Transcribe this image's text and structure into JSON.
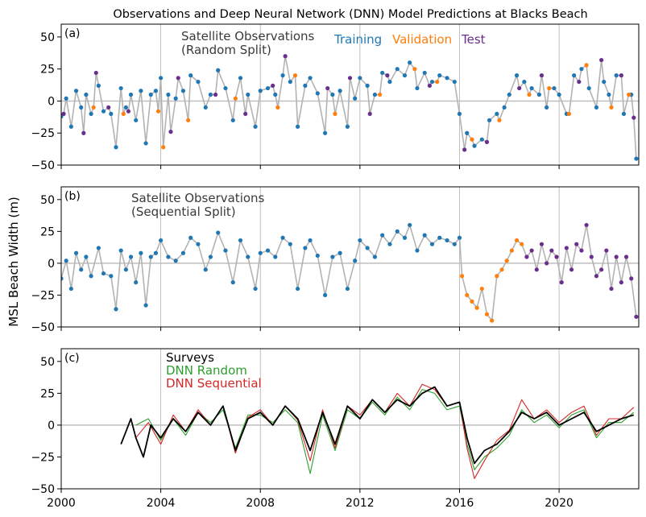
{
  "chart_data": {
    "type": "scatter",
    "title": "Observations and Deep Neural Network (DNN) Model Predictions at Blacks Beach",
    "ylabel": "MSL Beach Width (m)",
    "xlim": [
      2000,
      2023.2
    ],
    "ylim": [
      -50,
      60
    ],
    "x_ticks": [
      2000,
      2004,
      2008,
      2012,
      2016,
      2020
    ],
    "y_ticks": [
      -50,
      -25,
      0,
      25,
      50
    ],
    "grid": "vertical at x ticks, horizontal reference line at 0",
    "colors": {
      "observations_line": "#b3b3b3",
      "training": "#1f77b4",
      "validation": "#ff7f0e",
      "test": "#6a2f8e",
      "surveys": "#000000",
      "dnn_random": "#2ca02c",
      "dnn_sequential": "#d62728",
      "zero_line": "#bfbfbf"
    },
    "panels": [
      {
        "id": "a",
        "label": "(a)",
        "annotation": [
          "Satellite Observations",
          "(Random Split)"
        ],
        "legend": [
          "Training",
          "Validation",
          "Test"
        ],
        "series": [
          {
            "name": "Training",
            "x": [
              2000.0,
              2000.2,
              2000.4,
              2000.6,
              2000.8,
              2001.0,
              2001.2,
              2001.5,
              2001.7,
              2002.0,
              2002.2,
              2002.4,
              2002.6,
              2002.8,
              2003.0,
              2003.2,
              2003.4,
              2003.6,
              2003.8,
              2004.0,
              2004.3,
              2004.6,
              2004.9,
              2005.2,
              2005.5,
              2005.8,
              2006.0,
              2006.3,
              2006.6,
              2006.9,
              2007.2,
              2007.5,
              2007.8,
              2008.0,
              2008.3,
              2008.6,
              2008.9,
              2009.2,
              2009.5,
              2009.8,
              2010.0,
              2010.3,
              2010.6,
              2010.9,
              2011.2,
              2011.5,
              2011.8,
              2012.0,
              2012.3,
              2012.6,
              2012.9,
              2013.2,
              2013.5,
              2013.8,
              2014.0,
              2014.3,
              2014.6,
              2014.9,
              2015.2,
              2015.5,
              2015.8,
              2016.0,
              2016.3,
              2016.6,
              2016.9,
              2017.2,
              2017.5,
              2017.8,
              2018.0,
              2018.3,
              2018.6,
              2018.9,
              2019.2,
              2019.5,
              2019.8,
              2020.0,
              2020.3,
              2020.6,
              2020.9,
              2021.2,
              2021.5,
              2021.8,
              2022.0,
              2022.3,
              2022.6,
              2022.9,
              2023.1
            ],
            "y": [
              -12,
              2,
              -20,
              8,
              -5,
              5,
              -10,
              12,
              -8,
              -10,
              -36,
              10,
              -5,
              5,
              -15,
              8,
              -33,
              5,
              8,
              18,
              5,
              2,
              8,
              20,
              15,
              -5,
              5,
              24,
              10,
              -15,
              18,
              5,
              -20,
              8,
              10,
              5,
              20,
              15,
              -20,
              12,
              18,
              6,
              -25,
              5,
              8,
              -20,
              2,
              18,
              12,
              5,
              22,
              15,
              25,
              20,
              30,
              10,
              22,
              15,
              20,
              18,
              15,
              -10,
              -25,
              -35,
              -30,
              -15,
              -10,
              -5,
              5,
              20,
              15,
              10,
              5,
              -5,
              10,
              5,
              -10,
              20,
              25,
              10,
              -5,
              15,
              5,
              20,
              -10,
              5,
              -45
            ]
          },
          {
            "name": "Validation",
            "x": [
              2001.3,
              2002.5,
              2003.9,
              2004.1,
              2005.1,
              2007.0,
              2008.7,
              2009.4,
              2011.0,
              2012.8,
              2014.2,
              2015.1,
              2016.5,
              2017.6,
              2018.8,
              2019.6,
              2020.4,
              2021.1,
              2022.1,
              2022.8
            ],
            "y": [
              -5,
              -10,
              -8,
              -36,
              -15,
              2,
              -5,
              20,
              -10,
              5,
              25,
              15,
              -30,
              -15,
              5,
              10,
              -10,
              28,
              -5,
              5
            ]
          },
          {
            "name": "Test",
            "x": [
              2000.1,
              2000.9,
              2001.4,
              2001.9,
              2002.7,
              2004.4,
              2004.7,
              2006.2,
              2007.4,
              2008.5,
              2009.0,
              2010.7,
              2011.6,
              2012.4,
              2013.1,
              2014.8,
              2016.2,
              2017.1,
              2018.4,
              2019.3,
              2020.8,
              2021.7,
              2022.5,
              2023.0
            ],
            "y": [
              -10,
              -25,
              22,
              -5,
              -8,
              -24,
              18,
              5,
              -10,
              12,
              35,
              10,
              18,
              -10,
              20,
              12,
              -38,
              -32,
              10,
              20,
              15,
              32,
              20,
              -13
            ]
          }
        ]
      },
      {
        "id": "b",
        "label": "(b)",
        "annotation": [
          "Satellite Observations",
          "(Sequential Split)"
        ],
        "series": [
          {
            "name": "Training",
            "x": [
              2000.0,
              2000.2,
              2000.4,
              2000.6,
              2000.8,
              2001.0,
              2001.2,
              2001.5,
              2001.7,
              2002.0,
              2002.2,
              2002.4,
              2002.6,
              2002.8,
              2003.0,
              2003.2,
              2003.4,
              2003.6,
              2003.8,
              2004.0,
              2004.3,
              2004.6,
              2004.9,
              2005.2,
              2005.5,
              2005.8,
              2006.0,
              2006.3,
              2006.6,
              2006.9,
              2007.2,
              2007.5,
              2007.8,
              2008.0,
              2008.3,
              2008.6,
              2008.9,
              2009.2,
              2009.5,
              2009.8,
              2010.0,
              2010.3,
              2010.6,
              2010.9,
              2011.2,
              2011.5,
              2011.8,
              2012.0,
              2012.3,
              2012.6,
              2012.9,
              2013.2,
              2013.5,
              2013.8,
              2014.0,
              2014.3,
              2014.6,
              2014.9,
              2015.2,
              2015.5,
              2015.8,
              2016.0
            ],
            "y": [
              -12,
              2,
              -20,
              8,
              -5,
              5,
              -10,
              12,
              -8,
              -10,
              -36,
              10,
              -5,
              5,
              -15,
              8,
              -33,
              5,
              8,
              18,
              5,
              2,
              8,
              20,
              15,
              -5,
              5,
              24,
              10,
              -15,
              18,
              5,
              -20,
              8,
              10,
              5,
              20,
              15,
              -20,
              12,
              18,
              6,
              -25,
              5,
              8,
              -20,
              2,
              18,
              12,
              5,
              22,
              15,
              25,
              20,
              30,
              10,
              22,
              15,
              20,
              18,
              15,
              20
            ]
          },
          {
            "name": "Validation",
            "x": [
              2016.1,
              2016.3,
              2016.5,
              2016.7,
              2016.9,
              2017.1,
              2017.3,
              2017.5,
              2017.7,
              2017.9,
              2018.1,
              2018.3,
              2018.5
            ],
            "y": [
              -10,
              -25,
              -30,
              -35,
              -20,
              -40,
              -45,
              -10,
              -5,
              2,
              10,
              18,
              15
            ]
          },
          {
            "name": "Test",
            "x": [
              2018.7,
              2018.9,
              2019.1,
              2019.3,
              2019.5,
              2019.7,
              2019.9,
              2020.1,
              2020.3,
              2020.5,
              2020.7,
              2020.9,
              2021.1,
              2021.3,
              2021.5,
              2021.7,
              2021.9,
              2022.1,
              2022.3,
              2022.5,
              2022.7,
              2022.9,
              2023.1
            ],
            "y": [
              5,
              10,
              -5,
              15,
              0,
              10,
              5,
              -15,
              12,
              -5,
              15,
              10,
              30,
              5,
              -10,
              -5,
              10,
              -20,
              5,
              -15,
              5,
              -12,
              -42
            ]
          }
        ]
      },
      {
        "id": "c",
        "label": "(c)",
        "legend": [
          "Surveys",
          "DNN Random",
          "DNN Sequential"
        ],
        "series": [
          {
            "name": "Surveys",
            "x": [
              2002.4,
              2002.6,
              2002.8,
              2003.0,
              2003.3,
              2003.6,
              2004.0,
              2004.5,
              2005.0,
              2005.5,
              2006.0,
              2006.5,
              2007.0,
              2007.5,
              2008.0,
              2008.5,
              2009.0,
              2009.5,
              2010.0,
              2010.5,
              2011.0,
              2011.5,
              2012.0,
              2012.5,
              2013.0,
              2013.5,
              2014.0,
              2014.5,
              2015.0,
              2015.5,
              2016.0,
              2016.3,
              2016.6,
              2017.0,
              2017.5,
              2018.0,
              2018.5,
              2019.0,
              2019.5,
              2020.0,
              2020.5,
              2021.0,
              2021.5,
              2022.0,
              2022.5,
              2023.0
            ],
            "y": [
              -15,
              -5,
              5,
              -10,
              -25,
              0,
              -10,
              5,
              -5,
              10,
              0,
              15,
              -20,
              5,
              10,
              0,
              15,
              5,
              -20,
              10,
              -15,
              15,
              5,
              20,
              10,
              20,
              15,
              25,
              30,
              15,
              18,
              -10,
              -30,
              -20,
              -15,
              -5,
              10,
              5,
              10,
              0,
              5,
              10,
              -5,
              0,
              5,
              8
            ]
          },
          {
            "name": "DNN Random",
            "x": [
              2003.0,
              2003.5,
              2004.0,
              2004.5,
              2005.0,
              2005.5,
              2006.0,
              2006.5,
              2007.0,
              2007.5,
              2008.0,
              2008.5,
              2009.0,
              2009.5,
              2010.0,
              2010.5,
              2011.0,
              2011.5,
              2012.0,
              2012.5,
              2013.0,
              2013.5,
              2014.0,
              2014.5,
              2015.0,
              2015.5,
              2016.0,
              2016.3,
              2016.6,
              2017.0,
              2017.5,
              2018.0,
              2018.5,
              2019.0,
              2019.5,
              2020.0,
              2020.5,
              2021.0,
              2021.5,
              2022.0,
              2022.5,
              2023.0
            ],
            "y": [
              0,
              5,
              -12,
              5,
              -8,
              10,
              2,
              12,
              -18,
              8,
              8,
              2,
              12,
              2,
              -38,
              8,
              -20,
              12,
              5,
              18,
              8,
              22,
              12,
              28,
              25,
              12,
              15,
              -15,
              -35,
              -25,
              -18,
              -8,
              12,
              2,
              8,
              -2,
              8,
              12,
              -10,
              2,
              2,
              10
            ]
          },
          {
            "name": "DNN Sequential",
            "x": [
              2003.0,
              2003.5,
              2004.0,
              2004.5,
              2005.0,
              2005.5,
              2006.0,
              2006.5,
              2007.0,
              2007.5,
              2008.0,
              2008.5,
              2009.0,
              2009.5,
              2010.0,
              2010.5,
              2011.0,
              2011.5,
              2012.0,
              2012.5,
              2013.0,
              2013.5,
              2014.0,
              2014.5,
              2015.0,
              2015.5,
              2016.0,
              2016.3,
              2016.6,
              2017.0,
              2017.5,
              2018.0,
              2018.5,
              2019.0,
              2019.5,
              2020.0,
              2020.5,
              2021.0,
              2021.5,
              2022.0,
              2022.5,
              2023.0
            ],
            "y": [
              -10,
              2,
              -15,
              8,
              -5,
              12,
              0,
              15,
              -22,
              6,
              12,
              0,
              15,
              4,
              -28,
              12,
              -18,
              15,
              8,
              20,
              10,
              25,
              15,
              32,
              28,
              15,
              18,
              -18,
              -42,
              -28,
              -12,
              -4,
              20,
              5,
              12,
              2,
              10,
              15,
              -8,
              5,
              5,
              14
            ]
          }
        ]
      }
    ]
  }
}
